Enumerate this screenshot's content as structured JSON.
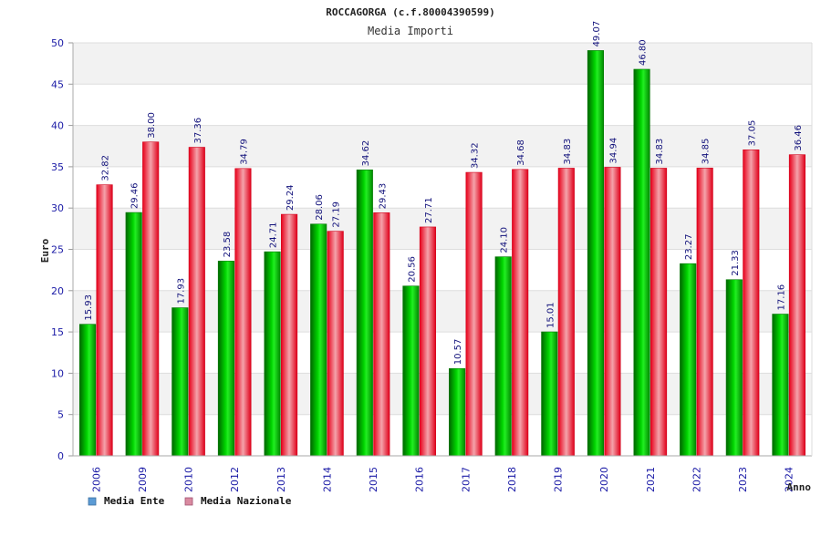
{
  "chart_data": {
    "type": "bar",
    "title": "ROCCAGORGA (c.f.80004390599)",
    "subtitle": "Media Importi",
    "xlabel": "Anno",
    "ylabel": "Euro",
    "ylim": [
      0,
      50
    ],
    "yticks": [
      0,
      5,
      10,
      15,
      20,
      25,
      30,
      35,
      40,
      45,
      50
    ],
    "grid": true,
    "legend_position": "bottom-left",
    "categories": [
      "2006",
      "2009",
      "2010",
      "2012",
      "2013",
      "2014",
      "2015",
      "2016",
      "2017",
      "2018",
      "2019",
      "2020",
      "2021",
      "2022",
      "2023",
      "2024"
    ],
    "series": [
      {
        "name": "Media Ente",
        "color": "#00c000",
        "legend_color": "#5b9bd5",
        "values": [
          15.93,
          29.46,
          17.93,
          23.58,
          24.71,
          28.06,
          34.62,
          20.56,
          10.57,
          24.1,
          15.01,
          49.07,
          46.8,
          23.27,
          21.33,
          17.16
        ],
        "labels": [
          "15.93",
          "29.46",
          "17.93",
          "23.58",
          "24.71",
          "28.06",
          "34.62",
          "20.56",
          "10.57",
          "24.10",
          "15.01",
          "49.07",
          "46.80",
          "23.27",
          "21.33",
          "17.16"
        ]
      },
      {
        "name": "Media Nazionale",
        "color": "#e8202a",
        "legend_color": "#d98aa0",
        "values": [
          32.82,
          38.0,
          37.36,
          34.79,
          29.24,
          27.19,
          29.43,
          27.71,
          34.32,
          34.68,
          34.83,
          34.94,
          34.83,
          34.85,
          37.05,
          36.46
        ],
        "labels": [
          "32.82",
          "38.00",
          "37.36",
          "34.79",
          "29.24",
          "27.19",
          "29.43",
          "27.71",
          "34.32",
          "34.68",
          "34.83",
          "34.94",
          "34.83",
          "34.85",
          "37.05",
          "36.46"
        ]
      }
    ]
  }
}
